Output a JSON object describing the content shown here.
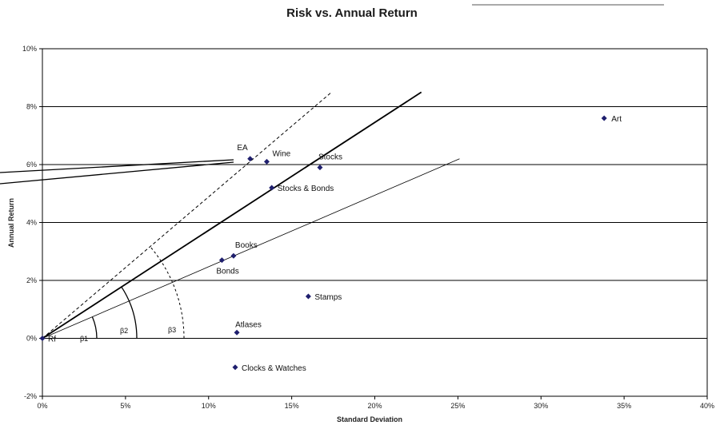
{
  "chart_data": {
    "type": "scatter",
    "title": "Risk vs. Annual Return",
    "xlabel": "Standard Deviation",
    "ylabel": "Annual Return",
    "xlim": [
      0,
      40
    ],
    "ylim": [
      -2,
      10
    ],
    "x_ticks": [
      "0%",
      "5%",
      "10%",
      "15%",
      "20%",
      "25%",
      "30%",
      "35%",
      "40%"
    ],
    "y_ticks": [
      "-2%",
      "0%",
      "2%",
      "4%",
      "6%",
      "8%",
      "10%"
    ],
    "grid": "horizontal",
    "marker_color": "#1f1f6e",
    "points": [
      {
        "label": "Rf",
        "x": 0.0,
        "y": 0.0
      },
      {
        "label": "EA",
        "x": 12.5,
        "y": 6.2
      },
      {
        "label": "Wine",
        "x": 13.5,
        "y": 6.1
      },
      {
        "label": "Stocks",
        "x": 16.7,
        "y": 5.9
      },
      {
        "label": "Stocks & Bonds",
        "x": 13.8,
        "y": 5.2
      },
      {
        "label": "Books",
        "x": 11.5,
        "y": 2.85
      },
      {
        "label": "Bonds",
        "x": 10.8,
        "y": 2.7
      },
      {
        "label": "Stamps",
        "x": 16.0,
        "y": 1.45
      },
      {
        "label": "Atlases",
        "x": 11.7,
        "y": 0.2
      },
      {
        "label": "Clocks & Watches",
        "x": 11.6,
        "y": -1.0
      },
      {
        "label": "Art",
        "x": 33.8,
        "y": 7.6
      }
    ],
    "lines": [
      {
        "style": "dashed",
        "x": [
          0,
          17.4
        ],
        "y": [
          0,
          8.5
        ]
      },
      {
        "style": "solid-bold",
        "x": [
          0,
          22.8
        ],
        "y": [
          0,
          8.5
        ]
      },
      {
        "style": "solid-thin",
        "x": [
          0,
          25.1
        ],
        "y": [
          0,
          6.2
        ]
      }
    ],
    "angle_labels": [
      "β1",
      "β2",
      "β3"
    ]
  }
}
